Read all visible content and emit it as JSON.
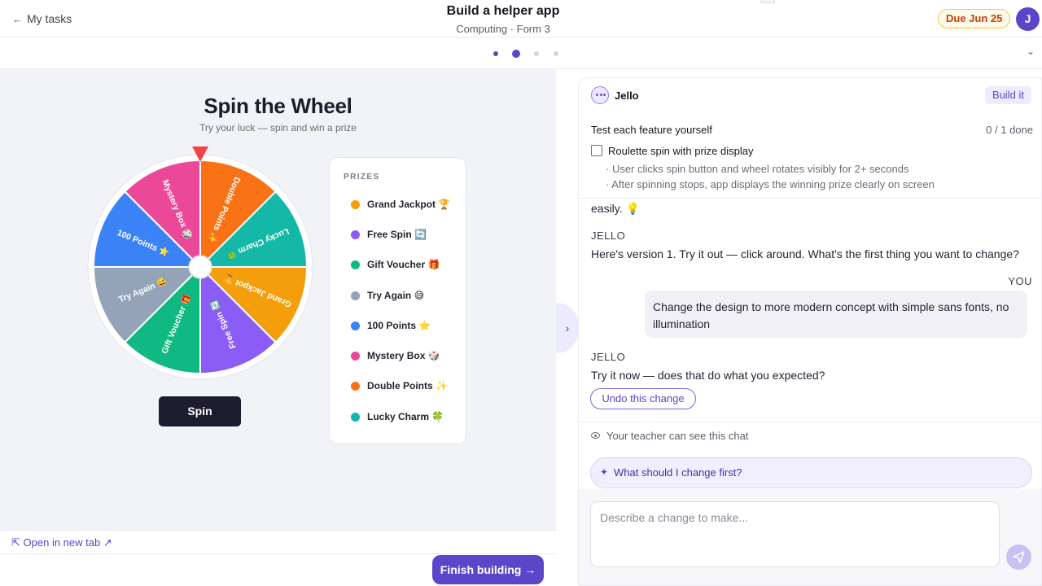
{
  "header": {
    "back_label": "My tasks",
    "title": "Build a helper app",
    "subtitle": "Computing · Form 3",
    "due": "Due Jun 25",
    "avatar_initial": "J"
  },
  "stepper": {
    "total": 4,
    "current": 2
  },
  "preview": {
    "title": "Spin the Wheel",
    "subtitle": "Try your luck — spin and win a prize",
    "spin_label": "Spin",
    "prizes_heading": "PRIZES",
    "prizes": [
      {
        "label": "Grand Jackpot 🏆",
        "color": "#f59e0b"
      },
      {
        "label": "Free Spin 🔄",
        "color": "#8b5cf6"
      },
      {
        "label": "Gift Voucher 🎁",
        "color": "#10b981"
      },
      {
        "label": "Try Again 😅",
        "color": "#94a3b8"
      },
      {
        "label": "100 Points ⭐",
        "color": "#3b82f6"
      },
      {
        "label": "Mystery Box 🎲",
        "color": "#ec4899"
      },
      {
        "label": "Double Points ✨",
        "color": "#f97316"
      },
      {
        "label": "Lucky Charm 🍀",
        "color": "#14b8a6"
      }
    ],
    "wheel_segments": [
      {
        "label": "Double Points ✨",
        "color": "#f97316"
      },
      {
        "label": "Lucky Charm 🍀",
        "color": "#14b8a6"
      },
      {
        "label": "Grand Jackpot 🏆",
        "color": "#f59e0b"
      },
      {
        "label": "Free Spin 🔄",
        "color": "#8b5cf6"
      },
      {
        "label": "Gift Voucher 🎁",
        "color": "#10b981"
      },
      {
        "label": "Try Again 😅",
        "color": "#94a3b8"
      },
      {
        "label": "100 Points ⭐",
        "color": "#3b82f6"
      },
      {
        "label": "Mystery Box 🎲",
        "color": "#ec4899"
      }
    ],
    "open_new_tab": "Open in new tab",
    "finish_label": "Finish building →"
  },
  "chat": {
    "assistant_name": "Jello",
    "build_it_label": "Build it",
    "checklist": {
      "title": "Test each feature yourself",
      "progress": "0 / 1 done",
      "item": "Roulette spin with prize display",
      "criteria": [
        "· User clicks spin button and wheel rotates visibly for 2+ seconds",
        "· After spinning stops, app displays the winning prize clearly on screen"
      ]
    },
    "messages": {
      "partial_text": "easily. 💡",
      "jello_label": "JELLO",
      "msg1": "Here's version 1. Try it out — click around. What's the first thing you want to change?",
      "you_label": "YOU",
      "user_msg": "Change the design to more modern concept with simple sans fonts, no illumination",
      "msg2": "Try it now — does that do what you expected?",
      "undo_label": "Undo this change"
    },
    "teacher_notice": "Your teacher can see this chat",
    "suggestion": "What should I change first?",
    "input_placeholder": "Describe a change to make..."
  },
  "colors": {
    "accent": "#5b45c9",
    "due_border": "#f5c84a",
    "due_text": "#c2410c",
    "spin_button": "#1c1c2e",
    "pointer": "#ef4444"
  },
  "icons": [
    "arrow-left-icon",
    "chevron-down-icon",
    "chevron-right-icon",
    "external-link-icon",
    "eye-icon",
    "sparkle-icon",
    "send-icon",
    "jello-avatar-icon"
  ]
}
